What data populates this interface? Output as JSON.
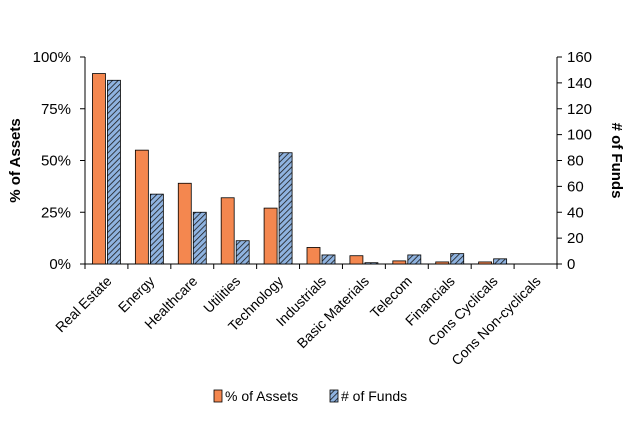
{
  "chart_data": {
    "type": "bar",
    "categories": [
      "Real Estate",
      "Energy",
      "Healthcare",
      "Utilities",
      "Technology",
      "Industrials",
      "Basic Materials",
      "Telecom",
      "Financials",
      "Cons Cyclicals",
      "Cons Non-cyclicals"
    ],
    "series": [
      {
        "name": "% of Assets",
        "axis": "left",
        "color": "#F4874F",
        "pattern": "solid",
        "values": [
          92,
          55,
          39,
          32,
          27,
          8,
          4,
          1.5,
          1,
          1,
          0
        ]
      },
      {
        "name": "# of Funds",
        "axis": "right",
        "color": "#8FB3E0",
        "pattern": "hatched",
        "values": [
          142,
          54,
          40,
          18,
          86,
          7,
          1,
          7,
          8,
          4,
          0
        ]
      }
    ],
    "ylabel": "% of Assets",
    "ylabel_right": "# of Funds",
    "ylim": [
      0,
      100
    ],
    "ylim_right": [
      0,
      160
    ],
    "yticks": [
      "0%",
      "25%",
      "50%",
      "75%",
      "100%"
    ],
    "yticks_right": [
      "0",
      "20",
      "40",
      "60",
      "80",
      "100",
      "120",
      "140",
      "160"
    ],
    "grid": false,
    "legend_position": "bottom"
  }
}
